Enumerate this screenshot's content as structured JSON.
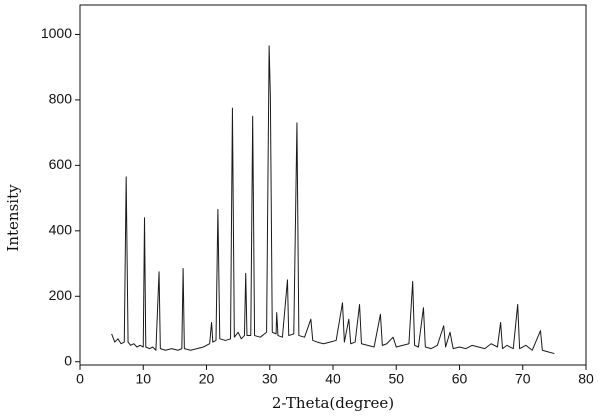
{
  "chart_data": {
    "type": "line",
    "x_label": "2-Theta(degree)",
    "y_label": "Intensity",
    "xlim": [
      0,
      80
    ],
    "ylim": [
      -10,
      1090
    ],
    "xticks": [
      0,
      10,
      20,
      30,
      40,
      50,
      60,
      70,
      80
    ],
    "yticks": [
      0,
      200,
      400,
      600,
      800,
      1000
    ],
    "grid": false,
    "series": [
      {
        "color": "#1a1a1a",
        "x": [
          5.0,
          5.5,
          6.0,
          6.5,
          7.0,
          7.3,
          7.6,
          8.0,
          8.5,
          9.0,
          9.5,
          10.0,
          10.2,
          10.4,
          11.0,
          11.5,
          12.0,
          12.5,
          12.7,
          13.5,
          14.5,
          15.5,
          16.1,
          16.3,
          16.5,
          17.5,
          18.5,
          19.5,
          20.5,
          20.8,
          21.0,
          21.5,
          21.8,
          22.1,
          23.0,
          23.8,
          24.1,
          24.4,
          25.0,
          25.5,
          26.0,
          26.2,
          26.4,
          27.0,
          27.3,
          27.6,
          28.5,
          29.5,
          29.9,
          30.1,
          30.4,
          31.0,
          31.1,
          31.3,
          32.0,
          32.8,
          33.0,
          33.8,
          34.3,
          34.6,
          35.5,
          36.5,
          36.8,
          37.5,
          38.5,
          39.5,
          40.5,
          41.5,
          41.8,
          42.5,
          42.8,
          43.5,
          44.2,
          44.5,
          45.5,
          46.5,
          47.5,
          47.8,
          48.5,
          49.5,
          50.0,
          51.0,
          52.0,
          52.6,
          52.9,
          53.5,
          54.3,
          54.6,
          55.5,
          56.5,
          57.5,
          57.8,
          58.5,
          59.0,
          60.0,
          61.0,
          62.0,
          63.0,
          64.0,
          65.0,
          66.0,
          66.5,
          66.8,
          67.5,
          68.5,
          69.2,
          69.5,
          70.5,
          71.5,
          72.8,
          73.1,
          74.0,
          75.0
        ],
        "values": [
          85,
          60,
          70,
          55,
          60,
          565,
          60,
          50,
          55,
          45,
          50,
          45,
          440,
          45,
          40,
          45,
          35,
          275,
          40,
          35,
          40,
          35,
          40,
          285,
          40,
          35,
          40,
          45,
          55,
          120,
          60,
          65,
          465,
          70,
          65,
          70,
          775,
          75,
          90,
          70,
          80,
          270,
          80,
          80,
          750,
          80,
          75,
          90,
          965,
          810,
          90,
          85,
          150,
          80,
          75,
          250,
          80,
          85,
          730,
          80,
          75,
          130,
          65,
          60,
          55,
          60,
          65,
          180,
          60,
          130,
          55,
          60,
          175,
          55,
          50,
          45,
          145,
          50,
          55,
          75,
          45,
          50,
          55,
          245,
          50,
          45,
          165,
          45,
          40,
          50,
          110,
          45,
          90,
          40,
          45,
          40,
          50,
          45,
          40,
          55,
          45,
          120,
          40,
          50,
          40,
          175,
          40,
          50,
          35,
          95,
          35,
          30,
          25
        ]
      }
    ]
  }
}
